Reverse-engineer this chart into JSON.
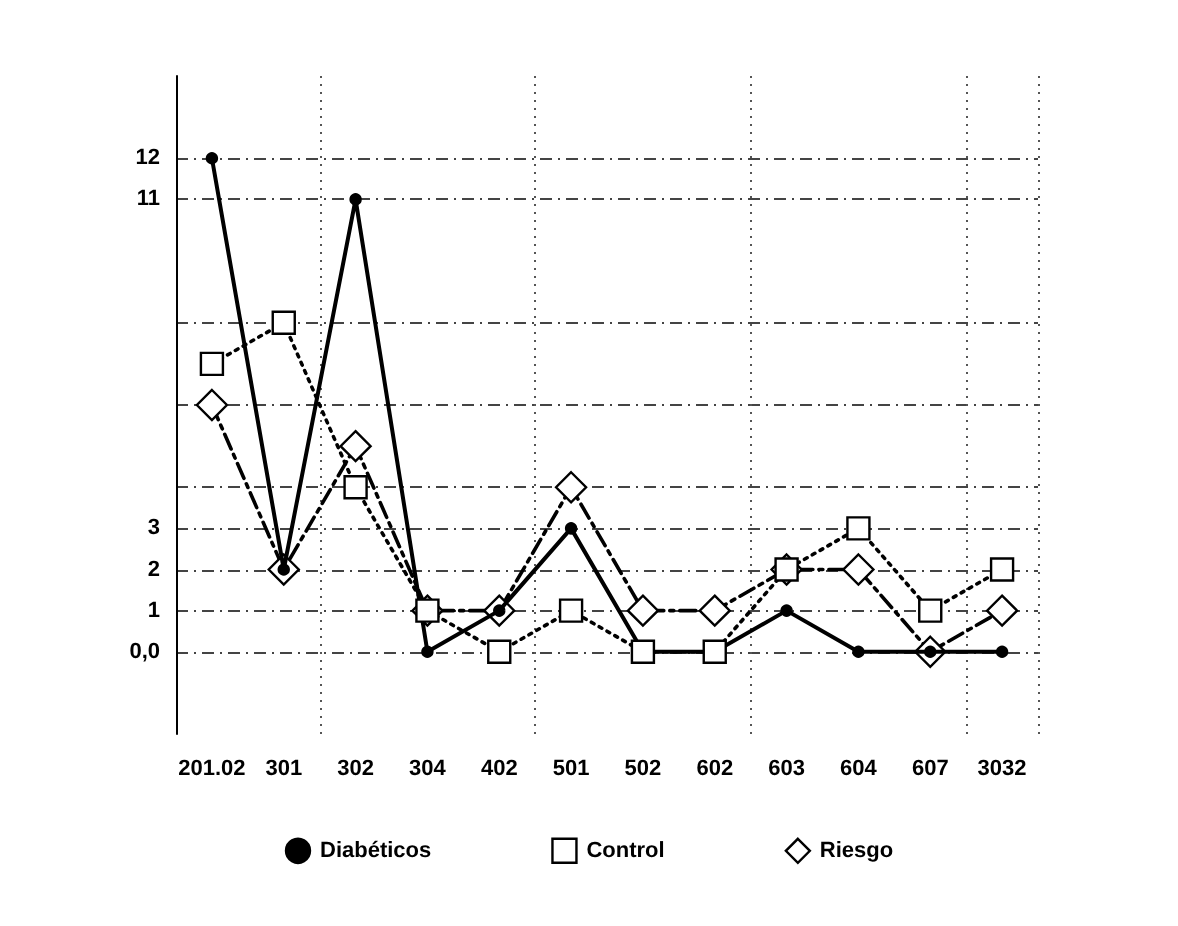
{
  "chart_data": {
    "type": "line",
    "categories": [
      "201.02",
      "301",
      "302",
      "304",
      "402",
      "501",
      "502",
      "602",
      "603",
      "604",
      "607",
      "3032"
    ],
    "series": [
      {
        "name": "Diabéticos",
        "color": "#000000",
        "marker": "circle",
        "line_style": "solid",
        "values": [
          12,
          2,
          11,
          0,
          1,
          3,
          0,
          0,
          1,
          0,
          0,
          0
        ]
      },
      {
        "name": "Control",
        "color": "#000000",
        "marker": "square",
        "line_style": "dotted",
        "values": [
          7,
          8,
          4,
          1,
          0,
          1,
          0,
          0,
          2,
          3,
          1,
          2
        ]
      },
      {
        "name": "Riesgo",
        "color": "#000000",
        "marker": "diamond",
        "line_style": "dashdot",
        "values": [
          6,
          2,
          5,
          1,
          1,
          4,
          1,
          1,
          2,
          2,
          0,
          1
        ]
      }
    ],
    "ylim": [
      -2,
      14
    ],
    "yticks": [
      {
        "value": 0,
        "label": "0,0"
      },
      1,
      2,
      3,
      {
        "value": 4,
        "label": null
      },
      {
        "value": 6,
        "label": null
      },
      {
        "value": 8,
        "label": null
      },
      11,
      12
    ],
    "grid": true,
    "legend": "bottom"
  }
}
